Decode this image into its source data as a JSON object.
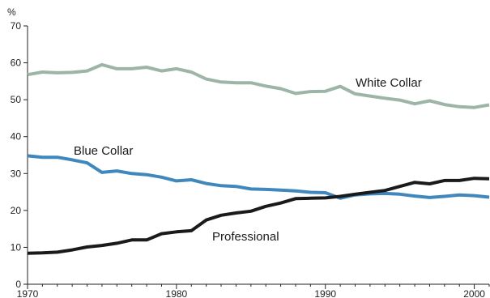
{
  "chart_data": {
    "type": "line",
    "ylabel": "%",
    "xlim": [
      1970,
      2001
    ],
    "ylim": [
      0,
      70
    ],
    "yticks": [
      0,
      10,
      20,
      30,
      40,
      50,
      60,
      70
    ],
    "xticks": [
      1970,
      1980,
      1990,
      2000
    ],
    "x": [
      1970,
      1971,
      1972,
      1973,
      1974,
      1975,
      1976,
      1977,
      1978,
      1979,
      1980,
      1981,
      1982,
      1983,
      1984,
      1985,
      1986,
      1987,
      1988,
      1989,
      1990,
      1991,
      1992,
      1993,
      1994,
      1995,
      1996,
      1997,
      1998,
      1999,
      2000,
      2001
    ],
    "grid": false,
    "series": [
      {
        "name": "White Collar",
        "color": "#9db5a7",
        "values": [
          56.8,
          57.5,
          57.3,
          57.4,
          57.8,
          59.5,
          58.4,
          58.4,
          58.8,
          57.8,
          58.4,
          57.5,
          55.6,
          54.8,
          54.6,
          54.6,
          53.7,
          53.0,
          51.7,
          52.2,
          52.3,
          53.6,
          51.6,
          51.0,
          50.4,
          49.9,
          48.9,
          49.7,
          48.7,
          48.1,
          47.9,
          48.6
        ]
      },
      {
        "name": "Blue Collar",
        "color": "#3f87bd",
        "values": [
          34.8,
          34.4,
          34.4,
          33.7,
          32.9,
          30.3,
          30.7,
          30.0,
          29.7,
          29.0,
          28.0,
          28.3,
          27.3,
          26.7,
          26.5,
          25.8,
          25.7,
          25.5,
          25.3,
          24.9,
          24.8,
          23.3,
          24.2,
          24.5,
          24.6,
          24.4,
          23.9,
          23.5,
          23.8,
          24.2,
          24.0,
          23.6
        ]
      },
      {
        "name": "Professional",
        "color": "#1a1a1a",
        "values": [
          8.4,
          8.5,
          8.7,
          9.3,
          10.1,
          10.5,
          11.1,
          12.0,
          12.0,
          13.7,
          14.2,
          14.5,
          17.4,
          18.7,
          19.3,
          19.8,
          21.1,
          22.0,
          23.2,
          23.3,
          23.4,
          23.8,
          24.4,
          24.9,
          25.4,
          26.5,
          27.6,
          27.2,
          28.1,
          28.1,
          28.7,
          28.6
        ]
      }
    ]
  }
}
